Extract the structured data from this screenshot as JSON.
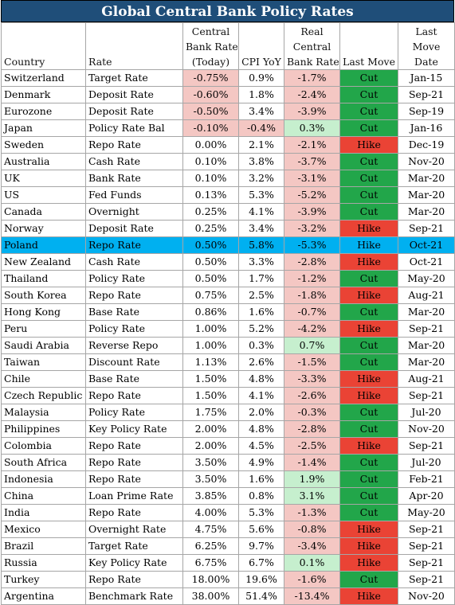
{
  "title": "Global Central Bank Policy Rates",
  "headers": {
    "country": "Country",
    "rate": "Rate",
    "cb_rate_l1": "Central",
    "cb_rate_l2": "Bank Rate",
    "cb_rate_l3": "(Today)",
    "cpi": "CPI YoY",
    "real_l1": "Real",
    "real_l2": "Central",
    "real_l3": "Bank Rate",
    "last_move": "Last Move",
    "date_l1": "Last",
    "date_l2": "Move",
    "date_l3": "Date"
  },
  "colors": {
    "title_bg": "#1f4e79",
    "negative_bg": "#f4c7c3",
    "positive_bg": "#c6efce",
    "cut_bg": "#22a64a",
    "hike_bg": "#ea4335",
    "highlight_bg": "#00b0f0"
  },
  "highlighted_country": "Poland",
  "rows": [
    {
      "country": "Switzerland",
      "rate": "Target Rate",
      "cb": "-0.75%",
      "cpi": "0.9%",
      "real": "-1.7%",
      "move": "Cut",
      "date": "Jan-15"
    },
    {
      "country": "Denmark",
      "rate": "Deposit Rate",
      "cb": "-0.60%",
      "cpi": "1.8%",
      "real": "-2.4%",
      "move": "Cut",
      "date": "Sep-21"
    },
    {
      "country": "Eurozone",
      "rate": "Deposit Rate",
      "cb": "-0.50%",
      "cpi": "3.4%",
      "real": "-3.9%",
      "move": "Cut",
      "date": "Sep-19"
    },
    {
      "country": "Japan",
      "rate": "Policy Rate Bal",
      "cb": "-0.10%",
      "cpi": "-0.4%",
      "real": "0.3%",
      "move": "Cut",
      "date": "Jan-16"
    },
    {
      "country": "Sweden",
      "rate": "Repo Rate",
      "cb": "0.00%",
      "cpi": "2.1%",
      "real": "-2.1%",
      "move": "Hike",
      "date": "Dec-19"
    },
    {
      "country": "Australia",
      "rate": "Cash Rate",
      "cb": "0.10%",
      "cpi": "3.8%",
      "real": "-3.7%",
      "move": "Cut",
      "date": "Nov-20"
    },
    {
      "country": "UK",
      "rate": "Bank Rate",
      "cb": "0.10%",
      "cpi": "3.2%",
      "real": "-3.1%",
      "move": "Cut",
      "date": "Mar-20"
    },
    {
      "country": "US",
      "rate": "Fed Funds",
      "cb": "0.13%",
      "cpi": "5.3%",
      "real": "-5.2%",
      "move": "Cut",
      "date": "Mar-20"
    },
    {
      "country": "Canada",
      "rate": "Overnight",
      "cb": "0.25%",
      "cpi": "4.1%",
      "real": "-3.9%",
      "move": "Cut",
      "date": "Mar-20"
    },
    {
      "country": "Norway",
      "rate": "Deposit Rate",
      "cb": "0.25%",
      "cpi": "3.4%",
      "real": "-3.2%",
      "move": "Hike",
      "date": "Sep-21"
    },
    {
      "country": "Poland",
      "rate": "Repo Rate",
      "cb": "0.50%",
      "cpi": "5.8%",
      "real": "-5.3%",
      "move": "Hike",
      "date": "Oct-21"
    },
    {
      "country": "New Zealand",
      "rate": "Cash Rate",
      "cb": "0.50%",
      "cpi": "3.3%",
      "real": "-2.8%",
      "move": "Hike",
      "date": "Oct-21"
    },
    {
      "country": "Thailand",
      "rate": "Policy Rate",
      "cb": "0.50%",
      "cpi": "1.7%",
      "real": "-1.2%",
      "move": "Cut",
      "date": "May-20"
    },
    {
      "country": "South Korea",
      "rate": "Repo Rate",
      "cb": "0.75%",
      "cpi": "2.5%",
      "real": "-1.8%",
      "move": "Hike",
      "date": "Aug-21"
    },
    {
      "country": "Hong Kong",
      "rate": "Base Rate",
      "cb": "0.86%",
      "cpi": "1.6%",
      "real": "-0.7%",
      "move": "Cut",
      "date": "Mar-20"
    },
    {
      "country": "Peru",
      "rate": "Policy Rate",
      "cb": "1.00%",
      "cpi": "5.2%",
      "real": "-4.2%",
      "move": "Hike",
      "date": "Sep-21"
    },
    {
      "country": "Saudi Arabia",
      "rate": "Reverse Repo",
      "cb": "1.00%",
      "cpi": "0.3%",
      "real": "0.7%",
      "move": "Cut",
      "date": "Mar-20"
    },
    {
      "country": "Taiwan",
      "rate": "Discount Rate",
      "cb": "1.13%",
      "cpi": "2.6%",
      "real": "-1.5%",
      "move": "Cut",
      "date": "Mar-20"
    },
    {
      "country": "Chile",
      "rate": "Base Rate",
      "cb": "1.50%",
      "cpi": "4.8%",
      "real": "-3.3%",
      "move": "Hike",
      "date": "Aug-21"
    },
    {
      "country": "Czech Republic",
      "rate": "Repo Rate",
      "cb": "1.50%",
      "cpi": "4.1%",
      "real": "-2.6%",
      "move": "Hike",
      "date": "Sep-21"
    },
    {
      "country": "Malaysia",
      "rate": "Policy Rate",
      "cb": "1.75%",
      "cpi": "2.0%",
      "real": "-0.3%",
      "move": "Cut",
      "date": "Jul-20"
    },
    {
      "country": "Philippines",
      "rate": "Key Policy Rate",
      "cb": "2.00%",
      "cpi": "4.8%",
      "real": "-2.8%",
      "move": "Cut",
      "date": "Nov-20"
    },
    {
      "country": "Colombia",
      "rate": "Repo Rate",
      "cb": "2.00%",
      "cpi": "4.5%",
      "real": "-2.5%",
      "move": "Hike",
      "date": "Sep-21"
    },
    {
      "country": "South Africa",
      "rate": "Repo Rate",
      "cb": "3.50%",
      "cpi": "4.9%",
      "real": "-1.4%",
      "move": "Cut",
      "date": "Jul-20"
    },
    {
      "country": "Indonesia",
      "rate": "Repo Rate",
      "cb": "3.50%",
      "cpi": "1.6%",
      "real": "1.9%",
      "move": "Cut",
      "date": "Feb-21"
    },
    {
      "country": "China",
      "rate": "Loan Prime Rate",
      "cb": "3.85%",
      "cpi": "0.8%",
      "real": "3.1%",
      "move": "Cut",
      "date": "Apr-20"
    },
    {
      "country": "India",
      "rate": "Repo Rate",
      "cb": "4.00%",
      "cpi": "5.3%",
      "real": "-1.3%",
      "move": "Cut",
      "date": "May-20"
    },
    {
      "country": "Mexico",
      "rate": "Overnight Rate",
      "cb": "4.75%",
      "cpi": "5.6%",
      "real": "-0.8%",
      "move": "Hike",
      "date": "Sep-21"
    },
    {
      "country": "Brazil",
      "rate": "Target Rate",
      "cb": "6.25%",
      "cpi": "9.7%",
      "real": "-3.4%",
      "move": "Hike",
      "date": "Sep-21"
    },
    {
      "country": "Russia",
      "rate": "Key Policy Rate",
      "cb": "6.75%",
      "cpi": "6.7%",
      "real": "0.1%",
      "move": "Hike",
      "date": "Sep-21"
    },
    {
      "country": "Turkey",
      "rate": "Repo Rate",
      "cb": "18.00%",
      "cpi": "19.6%",
      "real": "-1.6%",
      "move": "Cut",
      "date": "Sep-21"
    },
    {
      "country": "Argentina",
      "rate": "Benchmark Rate",
      "cb": "38.00%",
      "cpi": "51.4%",
      "real": "-13.4%",
      "move": "Hike",
      "date": "Nov-20"
    }
  ]
}
